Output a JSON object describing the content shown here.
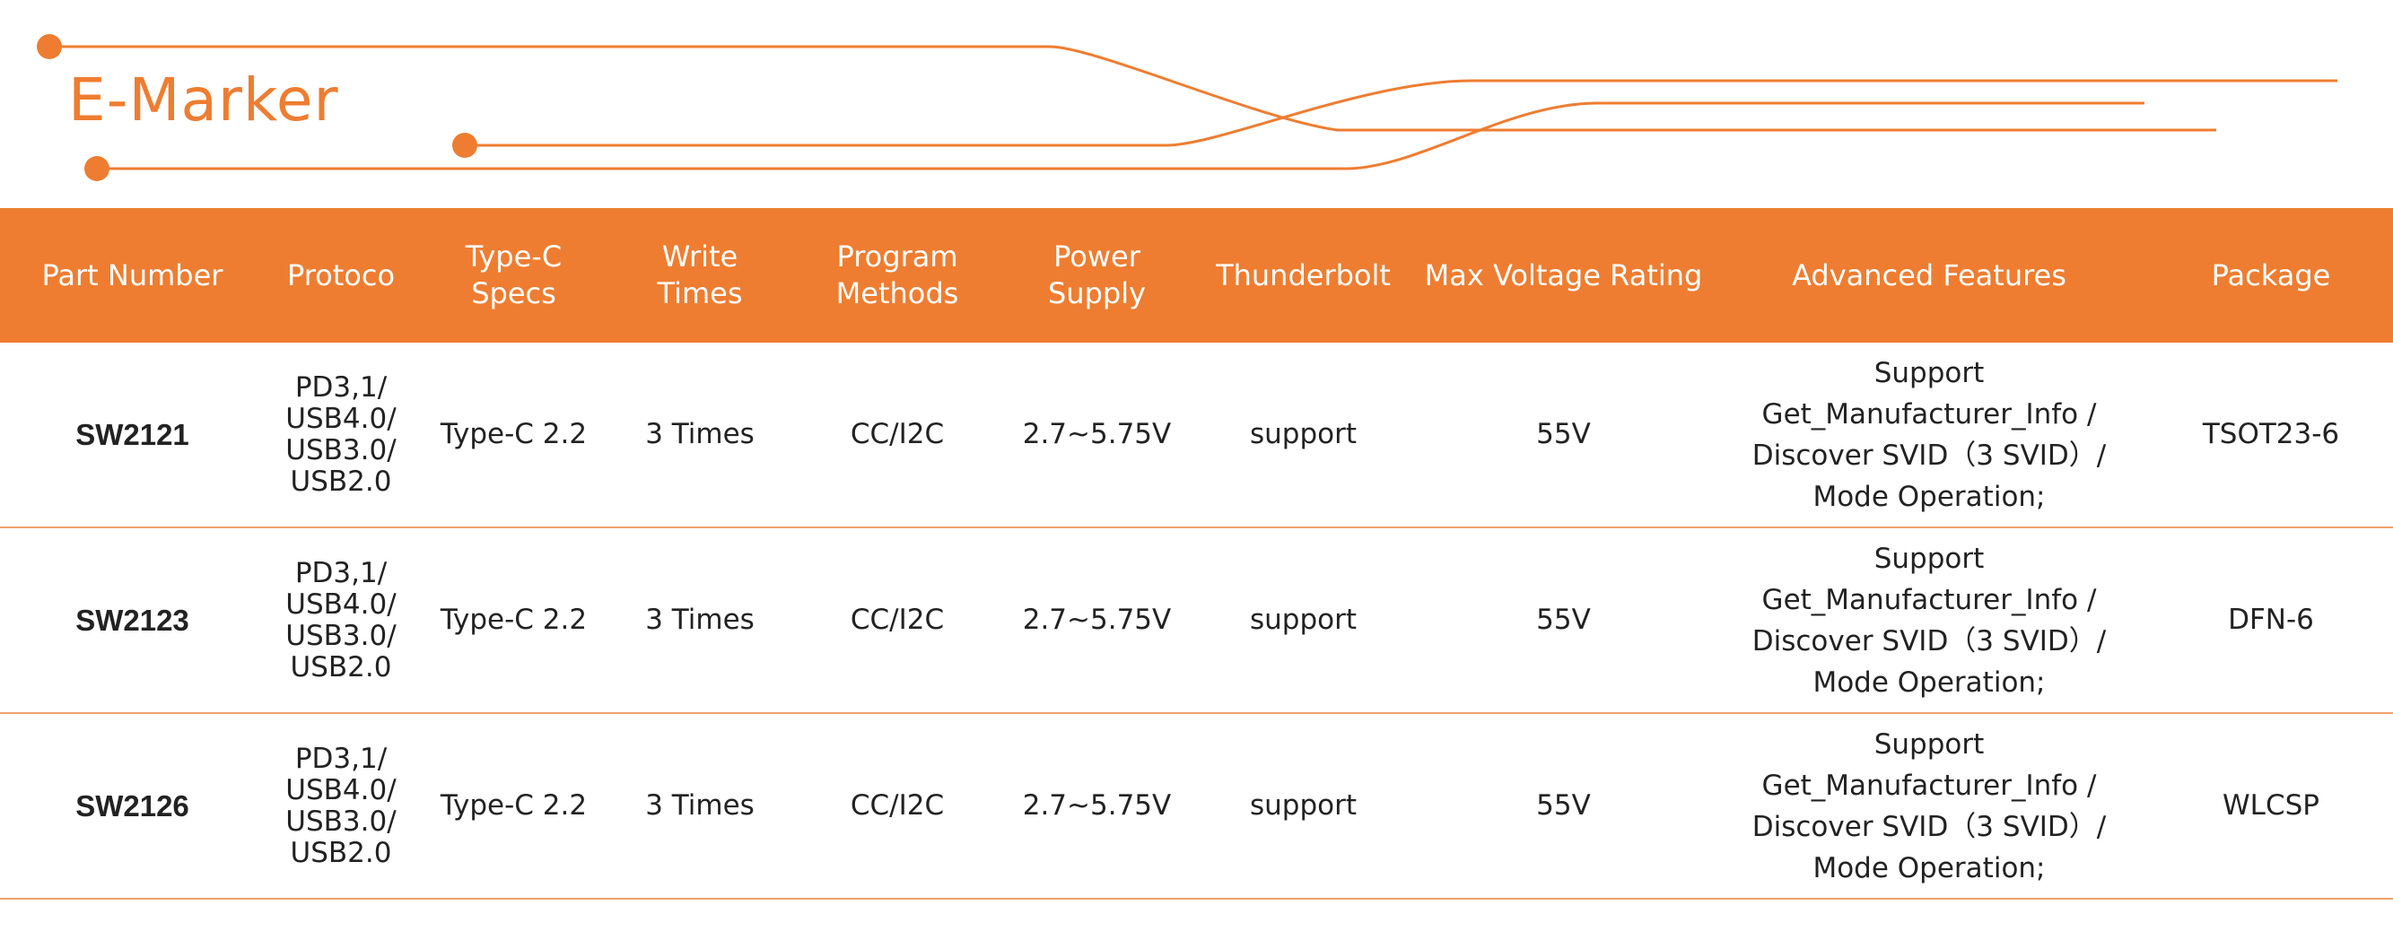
{
  "title": "E-Marker",
  "colors": {
    "accent": "#EE7D31",
    "header_text": "#FFFFFF",
    "row_border": "#F0A26C"
  },
  "table": {
    "headers": [
      [
        "Part Number"
      ],
      [
        "Protoco"
      ],
      [
        "Type-C",
        "Specs"
      ],
      [
        "Write",
        "Times"
      ],
      [
        "Program",
        "Methods"
      ],
      [
        "Power",
        "Supply"
      ],
      [
        "Thunderbolt"
      ],
      [
        "Max Voltage Rating"
      ],
      [
        "Advanced Features"
      ],
      [
        "Package"
      ]
    ],
    "rows": [
      {
        "part_number": "SW2121",
        "protocol": [
          "PD3,1/",
          "USB4.0/",
          "USB3.0/",
          "USB2.0"
        ],
        "type_c_specs": "Type-C 2.2",
        "write_times": "3 Times",
        "program_methods": "CC/I2C",
        "power_supply": "2.7~5.75V",
        "thunderbolt": "support",
        "max_voltage": "55V",
        "features": [
          "Support Get_Manufacturer_Info /",
          "Discover SVID（3 SVID）/",
          "Mode Operation;"
        ],
        "package": "TSOT23-6"
      },
      {
        "part_number": "SW2123",
        "protocol": [
          "PD3,1/",
          "USB4.0/",
          "USB3.0/",
          "USB2.0"
        ],
        "type_c_specs": "Type-C 2.2",
        "write_times": "3 Times",
        "program_methods": "CC/I2C",
        "power_supply": "2.7~5.75V",
        "thunderbolt": "support",
        "max_voltage": "55V",
        "features": [
          "Support Get_Manufacturer_Info /",
          "Discover SVID（3 SVID）/",
          "Mode Operation;"
        ],
        "package": "DFN-6"
      },
      {
        "part_number": "SW2126",
        "protocol": [
          "PD3,1/",
          "USB4.0/",
          "USB3.0/",
          "USB2.0"
        ],
        "type_c_specs": "Type-C 2.2",
        "write_times": "3 Times",
        "program_methods": "CC/I2C",
        "power_supply": "2.7~5.75V",
        "thunderbolt": "support",
        "max_voltage": "55V",
        "features": [
          "Support Get_Manufacturer_Info /",
          "Discover SVID（3 SVID）/",
          "Mode Operation;"
        ],
        "package": "WLCSP"
      }
    ]
  }
}
